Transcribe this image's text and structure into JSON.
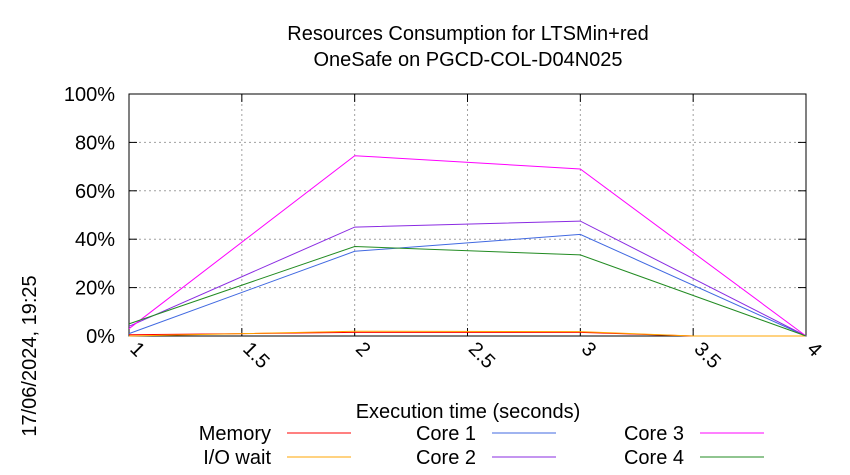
{
  "chart_data": {
    "type": "line",
    "title": [
      "Resources Consumption for LTSMin+red",
      "OneSafe on PGCD-COL-D04N025"
    ],
    "xlabel": "Execution time (seconds)",
    "ylabel": "",
    "xlim": [
      1,
      4
    ],
    "ylim": [
      0,
      100
    ],
    "x_ticks": [
      1,
      1.5,
      2,
      2.5,
      3,
      3.5,
      4
    ],
    "y_ticks": [
      0,
      20,
      40,
      60,
      80,
      100
    ],
    "y_tick_labels": [
      "0%",
      "20%",
      "40%",
      "60%",
      "80%",
      "100%"
    ],
    "x_tick_labels": [
      "1",
      "1.5",
      "2",
      "2.5",
      "3",
      "3.5",
      "4"
    ],
    "grid": true,
    "legend_position": "bottom",
    "timestamp": "17/06/2024, 19:25",
    "series": [
      {
        "name": "Memory",
        "color": "#ff0000",
        "x": [
          1,
          2,
          3,
          3.5,
          4
        ],
        "y": [
          0.5,
          1.5,
          1.5,
          0,
          0
        ]
      },
      {
        "name": "I/O wait",
        "color": "#ffa500",
        "x": [
          1,
          2,
          3,
          3.5,
          4
        ],
        "y": [
          0,
          2,
          1.8,
          0,
          0
        ]
      },
      {
        "name": "Core 1",
        "color": "#4169e1",
        "x": [
          1,
          2,
          3,
          4
        ],
        "y": [
          1,
          35,
          42,
          0
        ]
      },
      {
        "name": "Core 2",
        "color": "#8a2be2",
        "x": [
          1,
          2,
          3,
          4
        ],
        "y": [
          4,
          45,
          47.5,
          0
        ]
      },
      {
        "name": "Core 3",
        "color": "#ff00ff",
        "x": [
          1,
          2,
          3,
          4
        ],
        "y": [
          3,
          74.5,
          69,
          0
        ]
      },
      {
        "name": "Core 4",
        "color": "#228b22",
        "x": [
          1,
          2,
          3,
          4
        ],
        "y": [
          5,
          37,
          33.5,
          0
        ]
      }
    ]
  }
}
